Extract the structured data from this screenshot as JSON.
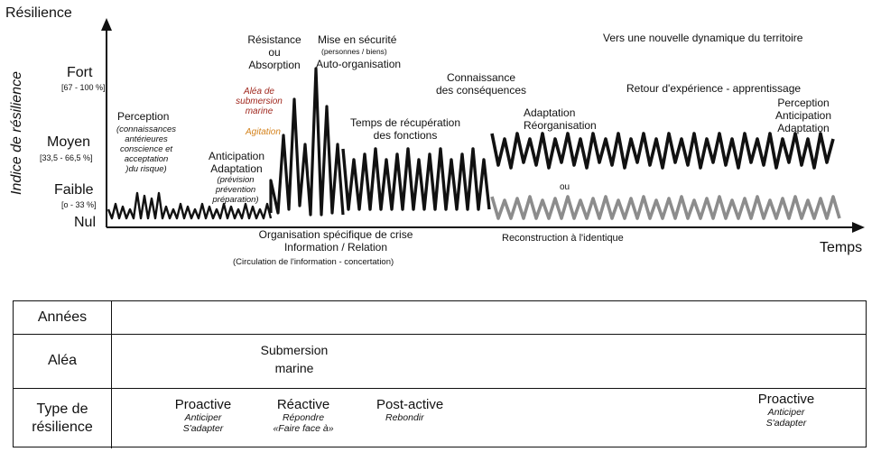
{
  "chart": {
    "y_title": "Résilience",
    "y_axis_label": "Indice de résilience",
    "x_axis_label": "Temps",
    "levels": [
      {
        "label": "Fort",
        "range": "[67 - 100 %]"
      },
      {
        "label": "Moyen",
        "range": "[33,5 - 66,5 %]"
      },
      {
        "label": "Faible",
        "range": "[o - 33 %]"
      },
      {
        "label": "Nul",
        "range": ""
      }
    ],
    "annotations": {
      "perception_title": "Perception",
      "perception_detail": [
        "(connaissances",
        "antérieures",
        "conscience et",
        "acceptation",
        ")du risque)"
      ],
      "anticipation_title": [
        "Anticipation",
        "Adaptation"
      ],
      "anticipation_detail": [
        "(prévision",
        "prévention",
        "préparation)"
      ],
      "resistance": [
        "Résistance",
        "ou",
        "Absorption"
      ],
      "alea": [
        "Aléa de",
        "submersion",
        "marine"
      ],
      "agitation": "Agitation",
      "mise_en_securite": "Mise en sécurité",
      "mise_detail": "(personnes / biens)",
      "auto_organisation": "Auto-organisation",
      "temps_recuperation": [
        "Temps de récupération",
        "des fonctions"
      ],
      "connaissance": [
        "Connaissance",
        "des conséquences"
      ],
      "adaptation_reorg": [
        "Adaptation",
        "Réorganisation"
      ],
      "ou": "ou",
      "nouvelle_dynamique": "Vers une nouvelle dynamique du territoire",
      "retour_experience": "Retour d'expérience - apprentissage",
      "perception_final": [
        "Perception",
        "Anticipation",
        "Adaptation"
      ],
      "organisation_crise": [
        "Organisation spécifique de crise",
        "Information / Relation"
      ],
      "circulation": "(Circulation de l'information - concertation)",
      "reconstruction": "Reconstruction à l'identique"
    },
    "colors": {
      "primary": "#111111",
      "gray": "#8c8c8c",
      "alea": "#a0281e",
      "agitation": "#d4821c"
    }
  },
  "table": {
    "rows": [
      {
        "label": "Années"
      },
      {
        "label": "Aléa",
        "content": [
          "Submersion",
          "marine"
        ]
      },
      {
        "label": "Type de\nrésilience"
      }
    ],
    "types": [
      {
        "title": "Proactive",
        "sub": [
          "Anticiper",
          "S'adapter"
        ]
      },
      {
        "title": "Réactive",
        "sub": [
          "Répondre",
          "«Faire face à»"
        ]
      },
      {
        "title": "Post-active",
        "sub": [
          "Rebondir"
        ]
      },
      {
        "title": "Proactive",
        "sub": [
          "Anticiper",
          "S'adapter"
        ]
      }
    ]
  }
}
